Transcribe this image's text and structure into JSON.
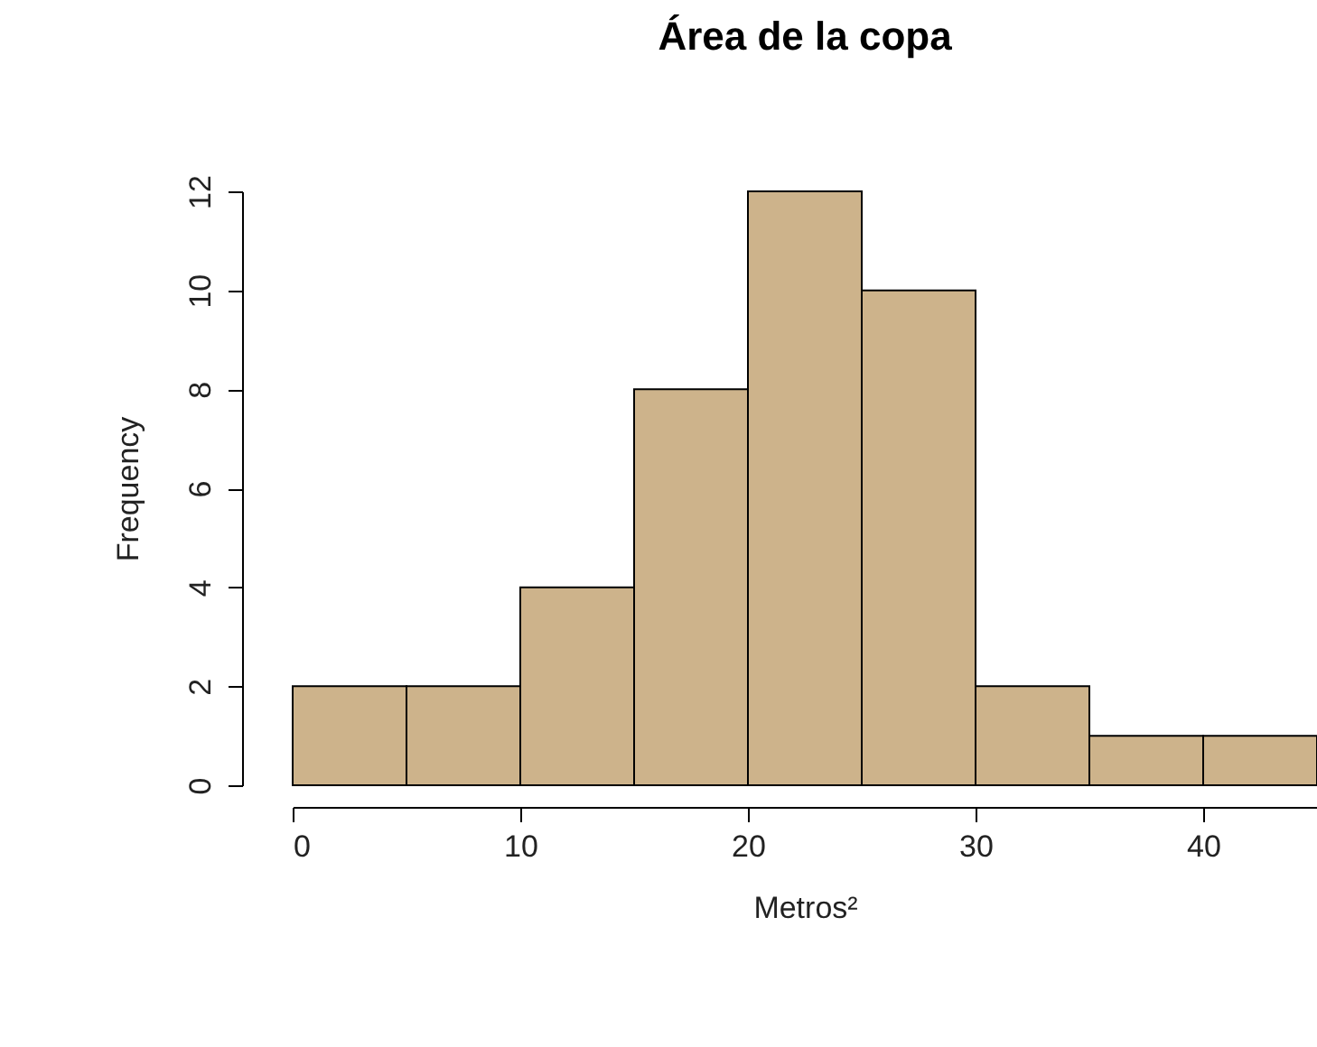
{
  "chart_data": {
    "type": "histogram",
    "title": "Área de la copa",
    "xlabel": "Metros²",
    "ylabel": "Frequency",
    "bins": [
      0,
      5,
      10,
      15,
      20,
      25,
      30,
      35,
      40,
      45
    ],
    "values": [
      2,
      2,
      4,
      8,
      12,
      10,
      2,
      1,
      1
    ],
    "color": "#cdb38b",
    "xlim": [
      0,
      45
    ],
    "xticks": [
      0,
      10,
      20,
      30,
      40
    ],
    "ylim": [
      0,
      12
    ],
    "yticks": [
      0,
      2,
      4,
      6,
      8,
      10,
      12
    ]
  }
}
